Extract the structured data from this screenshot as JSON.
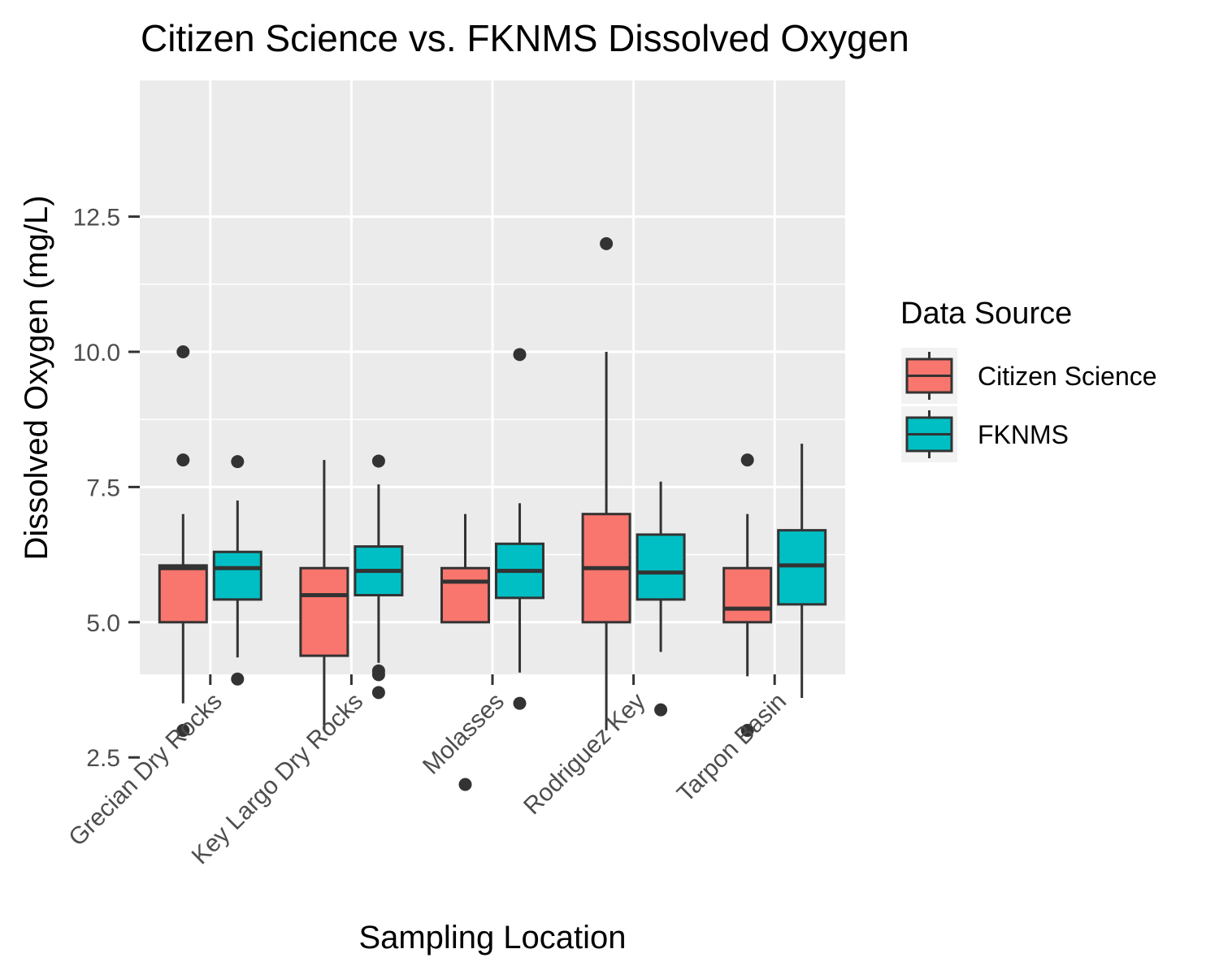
{
  "chart_data": {
    "type": "boxplot",
    "title": "Citizen Science vs. FKNMS Dissolved Oxygen",
    "xlabel": "Sampling Location",
    "ylabel": "Dissolved Oxygen (mg/L)",
    "categories": [
      "Grecian Dry Rocks",
      "Key Largo Dry Rocks",
      "Molasses",
      "Rodriguez Key",
      "Tarpon Basin"
    ],
    "yticks": [
      "2.5",
      "5.0",
      "7.5",
      "10.0",
      "12.5"
    ],
    "ylim": [
      1.5,
      12.5
    ],
    "grid": true,
    "legend": {
      "title": "Data Source",
      "position": "right"
    },
    "series": [
      {
        "name": "Citizen Science",
        "color": "#F8766D",
        "boxes": [
          {
            "lower_whisker": 3.5,
            "q1": 5.0,
            "median": 6.0,
            "q3": 6.05,
            "upper_whisker": 7.0,
            "outliers": [
              10.0,
              8.0,
              3.0
            ]
          },
          {
            "lower_whisker": 3.0,
            "q1": 4.38,
            "median": 5.5,
            "q3": 6.0,
            "upper_whisker": 8.0,
            "outliers": []
          },
          {
            "lower_whisker": 5.0,
            "q1": 5.0,
            "median": 5.75,
            "q3": 6.0,
            "upper_whisker": 7.0,
            "outliers": [
              2.0
            ]
          },
          {
            "lower_whisker": 3.0,
            "q1": 5.0,
            "median": 6.0,
            "q3": 7.0,
            "upper_whisker": 10.0,
            "outliers": [
              12.0
            ]
          },
          {
            "lower_whisker": 4.0,
            "q1": 5.0,
            "median": 5.25,
            "q3": 6.0,
            "upper_whisker": 7.0,
            "outliers": [
              8.0,
              3.0
            ]
          }
        ]
      },
      {
        "name": "FKNMS",
        "color": "#00BFC4",
        "boxes": [
          {
            "lower_whisker": 4.35,
            "q1": 5.42,
            "median": 6.0,
            "q3": 6.3,
            "upper_whisker": 7.25,
            "outliers": [
              7.97,
              3.95
            ]
          },
          {
            "lower_whisker": 4.25,
            "q1": 5.5,
            "median": 5.95,
            "q3": 6.4,
            "upper_whisker": 7.55,
            "outliers": [
              7.98,
              4.1,
              4.03,
              3.7
            ]
          },
          {
            "lower_whisker": 4.07,
            "q1": 5.45,
            "median": 5.95,
            "q3": 6.45,
            "upper_whisker": 7.2,
            "outliers": [
              9.95,
              3.5
            ]
          },
          {
            "lower_whisker": 4.45,
            "q1": 5.42,
            "median": 5.92,
            "q3": 6.62,
            "upper_whisker": 7.6,
            "outliers": [
              3.38
            ]
          },
          {
            "lower_whisker": 3.6,
            "q1": 5.33,
            "median": 6.05,
            "q3": 6.7,
            "upper_whisker": 8.3,
            "outliers": []
          }
        ]
      }
    ]
  }
}
